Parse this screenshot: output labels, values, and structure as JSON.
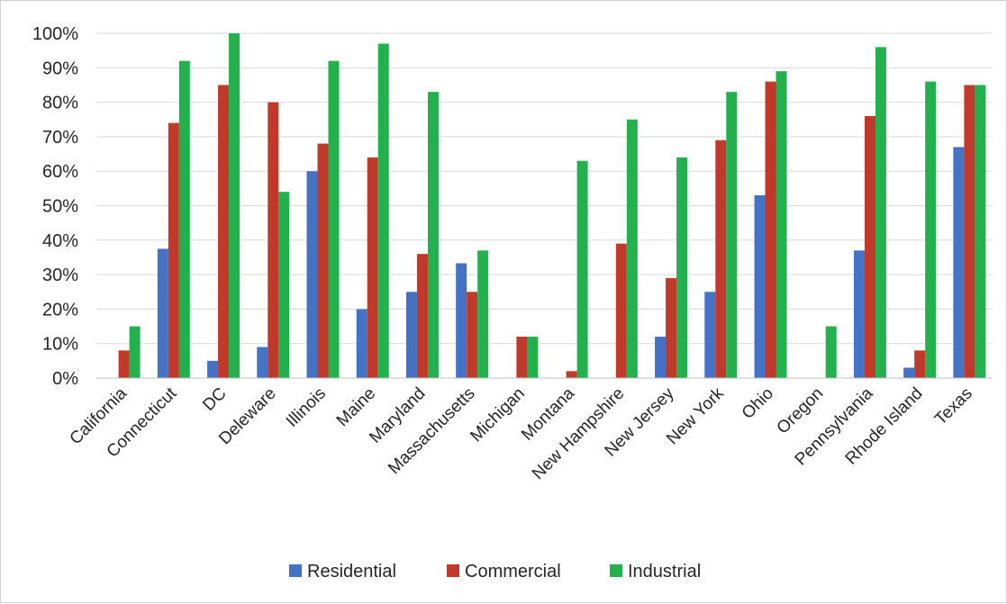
{
  "chart_data": {
    "type": "bar",
    "title": "",
    "xlabel": "",
    "ylabel": "",
    "ylim": [
      0,
      100
    ],
    "yticks": [
      "0%",
      "10%",
      "20%",
      "30%",
      "40%",
      "50%",
      "60%",
      "70%",
      "80%",
      "90%",
      "100%"
    ],
    "grid": true,
    "legend_position": "bottom",
    "categories": [
      "California",
      "Connecticut",
      "DC",
      "Deleware",
      "Illinois",
      "Maine",
      "Maryland",
      "Massachusetts",
      "Michigan",
      "Montana",
      "New Hampshire",
      "New Jersey",
      "New York",
      "Ohio",
      "Oregon",
      "Pennsylvania",
      "Rhode Island",
      "Texas"
    ],
    "series": [
      {
        "name": "Residential",
        "color": "#4472C4",
        "values": [
          0,
          37.5,
          5,
          9,
          60,
          20,
          25,
          33.3,
          0,
          0,
          0,
          12,
          25,
          53,
          0,
          37,
          3,
          67
        ]
      },
      {
        "name": "Commercial",
        "color": "#C0392B",
        "values": [
          8,
          74,
          85,
          80,
          68,
          64,
          36,
          25,
          12,
          2,
          39,
          29,
          69,
          86,
          0,
          76,
          8,
          85
        ]
      },
      {
        "name": "Industrial",
        "color": "#22B14C",
        "values": [
          15,
          92,
          100,
          54,
          92,
          97,
          83,
          37,
          12,
          63,
          75,
          64,
          83,
          89,
          15,
          96,
          86,
          85
        ]
      }
    ]
  }
}
